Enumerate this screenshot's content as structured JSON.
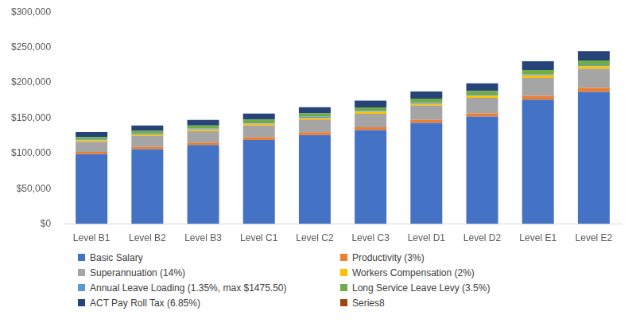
{
  "chart_data": {
    "type": "bar",
    "categories": [
      "Level B1",
      "Level B2",
      "Level B3",
      "Level C1",
      "Level C2",
      "Level C3",
      "Level D1",
      "Level D2",
      "Level E1",
      "Level E2"
    ],
    "series": [
      {
        "name": "Basic Salary",
        "color": "#4472c4",
        "values": [
          99000,
          106000,
          112000,
          119000,
          126000,
          133000,
          143000,
          152000,
          176000,
          187000
        ]
      },
      {
        "name": "Productivity (3%)",
        "color": "#ed7d31",
        "values": [
          2970,
          3180,
          3360,
          3570,
          3780,
          3990,
          4290,
          4560,
          5280,
          5610
        ]
      },
      {
        "name": "Superannuation (14%)",
        "color": "#a5a5a5",
        "values": [
          14276,
          15285,
          16150,
          17160,
          18169,
          19179,
          20621,
          21918,
          25379,
          26965
        ]
      },
      {
        "name": "Workers Compensation (2%)",
        "color": "#ffc000",
        "values": [
          2039,
          2184,
          2307,
          2451,
          2596,
          2740,
          2946,
          3131,
          3626,
          3852
        ]
      },
      {
        "name": "Annual Leave Loading (1.35%, max $1475.50)",
        "color": "#5b9bd5",
        "values": [
          1377,
          1474,
          1476,
          1476,
          1476,
          1476,
          1476,
          1476,
          1476,
          1476
        ]
      },
      {
        "name": "Long Service Leave Levy (3.5%)",
        "color": "#70ad47",
        "values": [
          3569,
          3821,
          4038,
          4290,
          4542,
          4795,
          5155,
          5480,
          6345,
          6741
        ]
      },
      {
        "name": "ACT Pay Roll Tax (6.85%)",
        "color": "#264478",
        "values": [
          6985,
          7479,
          7902,
          8396,
          8890,
          9384,
          10089,
          10724,
          12418,
          13194
        ]
      },
      {
        "name": "Series8",
        "color": "#9e480e",
        "values": [
          0,
          0,
          0,
          0,
          0,
          0,
          0,
          0,
          0,
          0
        ]
      }
    ],
    "ylim": [
      0,
      300000
    ],
    "yticks": [
      {
        "value": 0,
        "label": "$0"
      },
      {
        "value": 50000,
        "label": "$50,000"
      },
      {
        "value": 100000,
        "label": "$100,000"
      },
      {
        "value": 150000,
        "label": "$150,000"
      },
      {
        "value": 200000,
        "label": "$200,000"
      },
      {
        "value": 250000,
        "label": "$250,000"
      },
      {
        "value": 300000,
        "label": "$300,000"
      }
    ],
    "stacked": true,
    "grid": false,
    "legend": "bottom"
  }
}
